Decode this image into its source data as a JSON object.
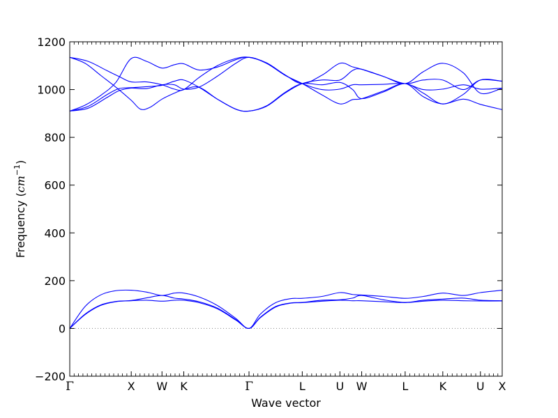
{
  "chart_data": {
    "type": "line",
    "xlabel": "Wave vector",
    "ylabel": "Frequency (cm⁻¹)",
    "ylabel_main": "Frequency (",
    "ylabel_unit": "cm",
    "ylabel_exp": "−1",
    "ylabel_close": ")",
    "ylim": [
      -200,
      1200
    ],
    "yticks": [
      -200,
      0,
      200,
      400,
      600,
      800,
      1000,
      1200
    ],
    "yticks_labels": [
      "−200",
      "0",
      "200",
      "400",
      "600",
      "800",
      "1000",
      "1200"
    ],
    "grid": false,
    "line_color": "#0000ff",
    "zero_line": {
      "y": 0,
      "style": "dotted",
      "color": "#808080"
    },
    "kpoints": [
      {
        "label": "Γ",
        "x": 0.0
      },
      {
        "label": "X",
        "x": 1.0
      },
      {
        "label": "W",
        "x": 1.5
      },
      {
        "label": "K",
        "x": 1.854
      },
      {
        "label": "Γ",
        "x": 2.915
      },
      {
        "label": "L",
        "x": 3.781
      },
      {
        "label": "U",
        "x": 4.393
      },
      {
        "label": "W",
        "x": 4.747
      },
      {
        "label": "L",
        "x": 5.454
      },
      {
        "label": "K",
        "x": 6.066
      },
      {
        "label": "U",
        "x": 6.678
      },
      {
        "label": "X",
        "x": 7.032
      }
    ],
    "xlim": [
      0.0,
      7.032
    ],
    "segment_ticks_per_section": 8,
    "series": [
      {
        "values": [
          [
            0.0,
            0
          ],
          [
            0.25,
            58
          ],
          [
            0.5,
            96
          ],
          [
            0.75,
            112
          ],
          [
            1.0,
            116
          ],
          [
            1.25,
            118
          ],
          [
            1.5,
            114
          ],
          [
            1.7,
            118
          ],
          [
            1.854,
            118
          ],
          [
            2.1,
            108
          ],
          [
            2.4,
            82
          ],
          [
            2.7,
            35
          ],
          [
            2.915,
            0
          ],
          [
            3.1,
            45
          ],
          [
            3.35,
            90
          ],
          [
            3.6,
            106
          ],
          [
            3.781,
            108
          ],
          [
            4.1,
            114
          ],
          [
            4.393,
            118
          ],
          [
            4.6,
            116
          ],
          [
            4.747,
            116
          ],
          [
            5.1,
            112
          ],
          [
            5.454,
            108
          ],
          [
            5.75,
            114
          ],
          [
            6.066,
            118
          ],
          [
            6.4,
            116
          ],
          [
            6.678,
            115
          ],
          [
            7.032,
            115
          ]
        ]
      },
      {
        "values": [
          [
            0.0,
            0
          ],
          [
            0.25,
            60
          ],
          [
            0.5,
            98
          ],
          [
            0.75,
            113
          ],
          [
            1.0,
            117
          ],
          [
            1.25,
            128
          ],
          [
            1.5,
            138
          ],
          [
            1.7,
            127
          ],
          [
            1.854,
            123
          ],
          [
            2.1,
            112
          ],
          [
            2.4,
            85
          ],
          [
            2.7,
            37
          ],
          [
            2.915,
            0
          ],
          [
            3.1,
            47
          ],
          [
            3.35,
            92
          ],
          [
            3.6,
            107
          ],
          [
            3.781,
            109
          ],
          [
            4.1,
            118
          ],
          [
            4.393,
            120
          ],
          [
            4.6,
            127
          ],
          [
            4.747,
            138
          ],
          [
            5.1,
            120
          ],
          [
            5.454,
            109
          ],
          [
            5.75,
            118
          ],
          [
            6.066,
            123
          ],
          [
            6.4,
            127
          ],
          [
            6.678,
            118
          ],
          [
            7.032,
            116
          ]
        ]
      },
      {
        "values": [
          [
            0.0,
            0
          ],
          [
            0.25,
            92
          ],
          [
            0.5,
            140
          ],
          [
            0.75,
            158
          ],
          [
            1.0,
            160
          ],
          [
            1.25,
            152
          ],
          [
            1.5,
            138
          ],
          [
            1.7,
            148
          ],
          [
            1.854,
            148
          ],
          [
            2.1,
            132
          ],
          [
            2.4,
            96
          ],
          [
            2.7,
            42
          ],
          [
            2.915,
            0
          ],
          [
            3.1,
            60
          ],
          [
            3.35,
            108
          ],
          [
            3.6,
            125
          ],
          [
            3.781,
            126
          ],
          [
            4.1,
            134
          ],
          [
            4.393,
            150
          ],
          [
            4.6,
            142
          ],
          [
            4.747,
            140
          ],
          [
            5.1,
            134
          ],
          [
            5.454,
            126
          ],
          [
            5.75,
            134
          ],
          [
            6.066,
            148
          ],
          [
            6.4,
            138
          ],
          [
            6.678,
            150
          ],
          [
            7.032,
            160
          ]
        ]
      },
      {
        "values": [
          [
            0.0,
            910
          ],
          [
            0.3,
            922
          ],
          [
            0.6,
            966
          ],
          [
            0.8,
            995
          ],
          [
            1.0,
            1006
          ],
          [
            1.25,
            1004
          ],
          [
            1.5,
            1020
          ],
          [
            1.7,
            1020
          ],
          [
            1.854,
            1002
          ],
          [
            2.1,
            1010
          ],
          [
            2.4,
            1056
          ],
          [
            2.7,
            1110
          ],
          [
            2.915,
            1135
          ],
          [
            3.2,
            1110
          ],
          [
            3.5,
            1060
          ],
          [
            3.781,
            1025
          ],
          [
            4.1,
            1000
          ],
          [
            4.393,
            1002
          ],
          [
            4.6,
            1020
          ],
          [
            4.747,
            1020
          ],
          [
            5.1,
            1022
          ],
          [
            5.454,
            1025
          ],
          [
            5.75,
            1000
          ],
          [
            6.066,
            1002
          ],
          [
            6.4,
            1020
          ],
          [
            6.678,
            1002
          ],
          [
            7.032,
            1006
          ]
        ]
      },
      {
        "values": [
          [
            0.0,
            910
          ],
          [
            0.3,
            930
          ],
          [
            0.6,
            978
          ],
          [
            0.8,
            1004
          ],
          [
            1.0,
            1008
          ],
          [
            1.25,
            1012
          ],
          [
            1.5,
            1018
          ],
          [
            1.7,
            1035
          ],
          [
            1.854,
            1040
          ],
          [
            2.1,
            1010
          ],
          [
            2.4,
            960
          ],
          [
            2.7,
            918
          ],
          [
            2.915,
            910
          ],
          [
            3.2,
            930
          ],
          [
            3.5,
            985
          ],
          [
            3.781,
            1025
          ],
          [
            4.1,
            1040
          ],
          [
            4.393,
            1040
          ],
          [
            4.6,
            1080
          ],
          [
            4.747,
            1085
          ],
          [
            5.1,
            1055
          ],
          [
            5.454,
            1025
          ],
          [
            5.75,
            1040
          ],
          [
            6.066,
            1040
          ],
          [
            6.4,
            1000
          ],
          [
            6.678,
            1040
          ],
          [
            7.032,
            1035
          ]
        ]
      },
      {
        "values": [
          [
            0.0,
            1135
          ],
          [
            0.25,
            1110
          ],
          [
            0.5,
            1060
          ],
          [
            0.75,
            1010
          ],
          [
            1.0,
            955
          ],
          [
            1.15,
            918
          ],
          [
            1.3,
            925
          ],
          [
            1.5,
            960
          ],
          [
            1.7,
            985
          ],
          [
            1.854,
            1000
          ],
          [
            2.1,
            1010
          ],
          [
            2.4,
            960
          ],
          [
            2.7,
            918
          ],
          [
            2.915,
            910
          ],
          [
            3.2,
            932
          ],
          [
            3.5,
            988
          ],
          [
            3.781,
            1025
          ],
          [
            4.1,
            1020
          ],
          [
            4.393,
            1030
          ],
          [
            4.6,
            1000
          ],
          [
            4.747,
            962
          ],
          [
            5.1,
            990
          ],
          [
            5.454,
            1025
          ],
          [
            5.75,
            985
          ],
          [
            6.066,
            940
          ],
          [
            6.4,
            980
          ],
          [
            6.678,
            1040
          ],
          [
            7.032,
            1035
          ]
        ]
      },
      {
        "values": [
          [
            0.0,
            1135
          ],
          [
            0.3,
            1118
          ],
          [
            0.6,
            1080
          ],
          [
            0.8,
            1055
          ],
          [
            1.0,
            1032
          ],
          [
            1.25,
            1032
          ],
          [
            1.5,
            1020
          ],
          [
            1.7,
            1002
          ],
          [
            1.854,
            1000
          ],
          [
            2.1,
            1050
          ],
          [
            2.4,
            1100
          ],
          [
            2.7,
            1130
          ],
          [
            2.915,
            1135
          ],
          [
            3.2,
            1112
          ],
          [
            3.5,
            1062
          ],
          [
            3.781,
            1025
          ],
          [
            4.1,
            1060
          ],
          [
            4.393,
            1110
          ],
          [
            4.6,
            1095
          ],
          [
            4.747,
            1085
          ],
          [
            5.1,
            1055
          ],
          [
            5.454,
            1025
          ],
          [
            5.75,
            1075
          ],
          [
            6.066,
            1110
          ],
          [
            6.4,
            1070
          ],
          [
            6.678,
            985
          ],
          [
            7.032,
            1006
          ]
        ]
      },
      {
        "values": [
          [
            0.0,
            910
          ],
          [
            0.25,
            935
          ],
          [
            0.5,
            975
          ],
          [
            0.75,
            1030
          ],
          [
            1.0,
            1130
          ],
          [
            1.25,
            1118
          ],
          [
            1.5,
            1090
          ],
          [
            1.7,
            1104
          ],
          [
            1.854,
            1108
          ],
          [
            2.1,
            1082
          ],
          [
            2.4,
            1094
          ],
          [
            2.7,
            1125
          ],
          [
            2.915,
            1135
          ],
          [
            3.2,
            1110
          ],
          [
            3.5,
            1060
          ],
          [
            3.781,
            1025
          ],
          [
            4.1,
            978
          ],
          [
            4.393,
            940
          ],
          [
            4.6,
            958
          ],
          [
            4.747,
            962
          ],
          [
            5.1,
            994
          ],
          [
            5.454,
            1025
          ],
          [
            5.75,
            970
          ],
          [
            6.066,
            940
          ],
          [
            6.4,
            960
          ],
          [
            6.678,
            938
          ],
          [
            7.032,
            916
          ]
        ]
      }
    ]
  }
}
